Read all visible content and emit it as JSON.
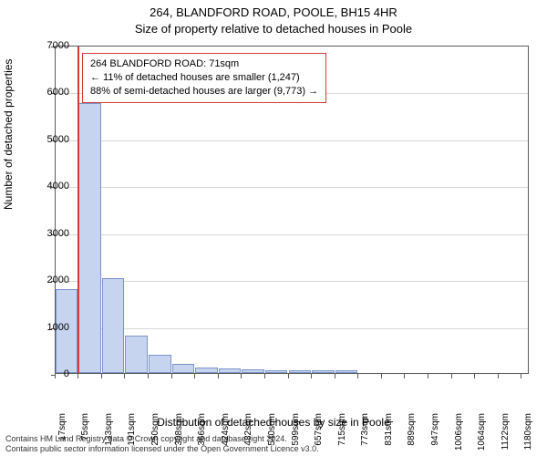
{
  "title1": "264, BLANDFORD ROAD, POOLE, BH15 4HR",
  "title2": "Size of property relative to detached houses in Poole",
  "ylabel": "Number of detached properties",
  "xlabel": "Distribution of detached houses by size in Poole",
  "chart": {
    "type": "histogram",
    "background_color": "#ffffff",
    "bar_fill": "#c7d4f0",
    "bar_border": "#7a94c9",
    "grid_color": "#d8d8d8",
    "axis_color": "#5a5a5a",
    "marker_color": "#d63939",
    "ylim_max": 7000,
    "yticks": [
      0,
      1000,
      2000,
      3000,
      4000,
      5000,
      6000,
      7000
    ],
    "xmin": 17,
    "xmax": 1200,
    "xticks": [
      17,
      75,
      133,
      191,
      250,
      308,
      366,
      424,
      482,
      540,
      599,
      657,
      715,
      773,
      831,
      889,
      947,
      1006,
      1064,
      1122,
      1180
    ],
    "xtick_suffix": "sqm",
    "bar_bin_width": 58,
    "bars": [
      {
        "x": 17,
        "v": 1780
      },
      {
        "x": 75,
        "v": 5750
      },
      {
        "x": 133,
        "v": 2020
      },
      {
        "x": 191,
        "v": 800
      },
      {
        "x": 250,
        "v": 380
      },
      {
        "x": 308,
        "v": 200
      },
      {
        "x": 366,
        "v": 120
      },
      {
        "x": 424,
        "v": 90
      },
      {
        "x": 482,
        "v": 70
      },
      {
        "x": 540,
        "v": 60
      },
      {
        "x": 599,
        "v": 60
      },
      {
        "x": 657,
        "v": 55
      },
      {
        "x": 715,
        "v": 50
      }
    ],
    "marker_x": 71
  },
  "annotation": {
    "line1": "264 BLANDFORD ROAD: 71sqm",
    "line2": "← 11% of detached houses are smaller (1,247)",
    "line3": "88% of semi-detached houses are larger (9,773) →"
  },
  "footer": {
    "line1": "Contains HM Land Registry data © Crown copyright and database right 2024.",
    "line2": "Contains public sector information licensed under the Open Government Licence v3.0."
  }
}
